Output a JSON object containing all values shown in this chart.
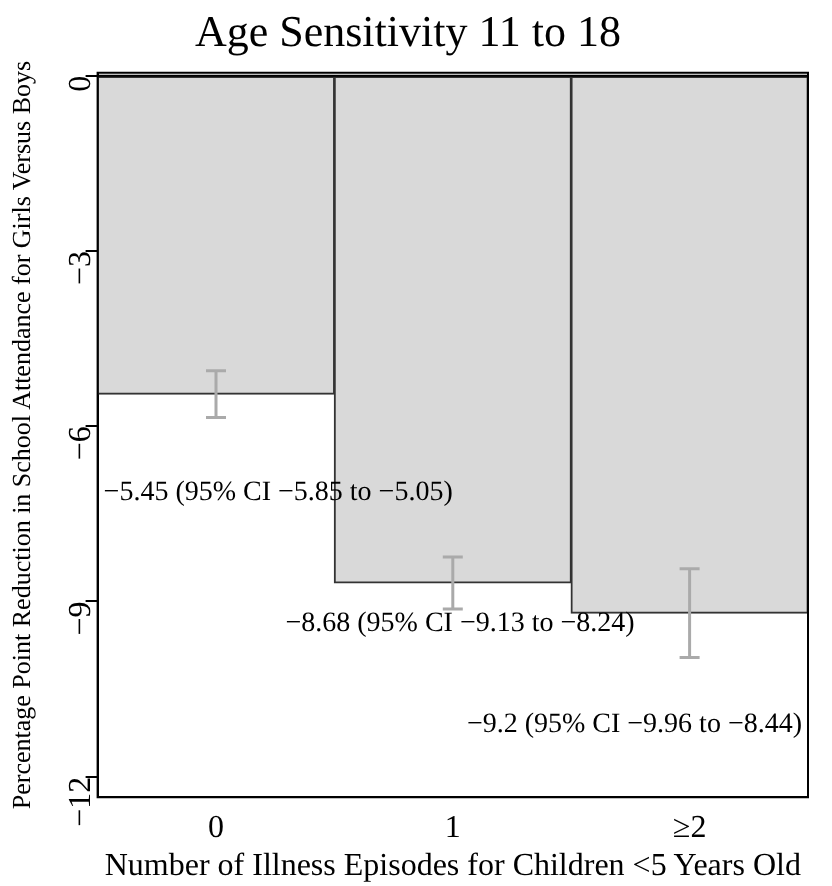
{
  "chart_data": {
    "type": "bar",
    "title": "Age Sensitivity 11 to 18",
    "xlabel": "Number of Illness Episodes for Children <5 Years Old",
    "ylabel": "Percentage Point Reduction in School Attendance for Girls Versus Boys",
    "categories": [
      "0",
      "1",
      "≥2"
    ],
    "values": [
      -5.45,
      -8.68,
      -9.2
    ],
    "color": "#d9d9d9",
    "errors": [
      [
        -5.85,
        -5.05
      ],
      [
        -9.13,
        -8.24
      ],
      [
        -9.96,
        -8.44
      ]
    ],
    "ylim": [
      -12.35,
      0.05
    ],
    "yticks": [
      {
        "value": -12,
        "label": "−12"
      },
      {
        "value": -9,
        "label": "−9"
      },
      {
        "value": -6,
        "label": "−6"
      },
      {
        "value": -3,
        "label": "−3"
      },
      0
    ],
    "ref_lines": [
      {
        "axis": "y",
        "value": 0,
        "color": "#000000"
      }
    ],
    "annotations": [
      "−5.45 (95% CI −5.85 to −5.05)",
      "−8.68 (95% CI −9.13 to −8.24)",
      "−9.2 (95% CI −9.96 to −8.44)"
    ],
    "grid": false,
    "legend": false
  }
}
